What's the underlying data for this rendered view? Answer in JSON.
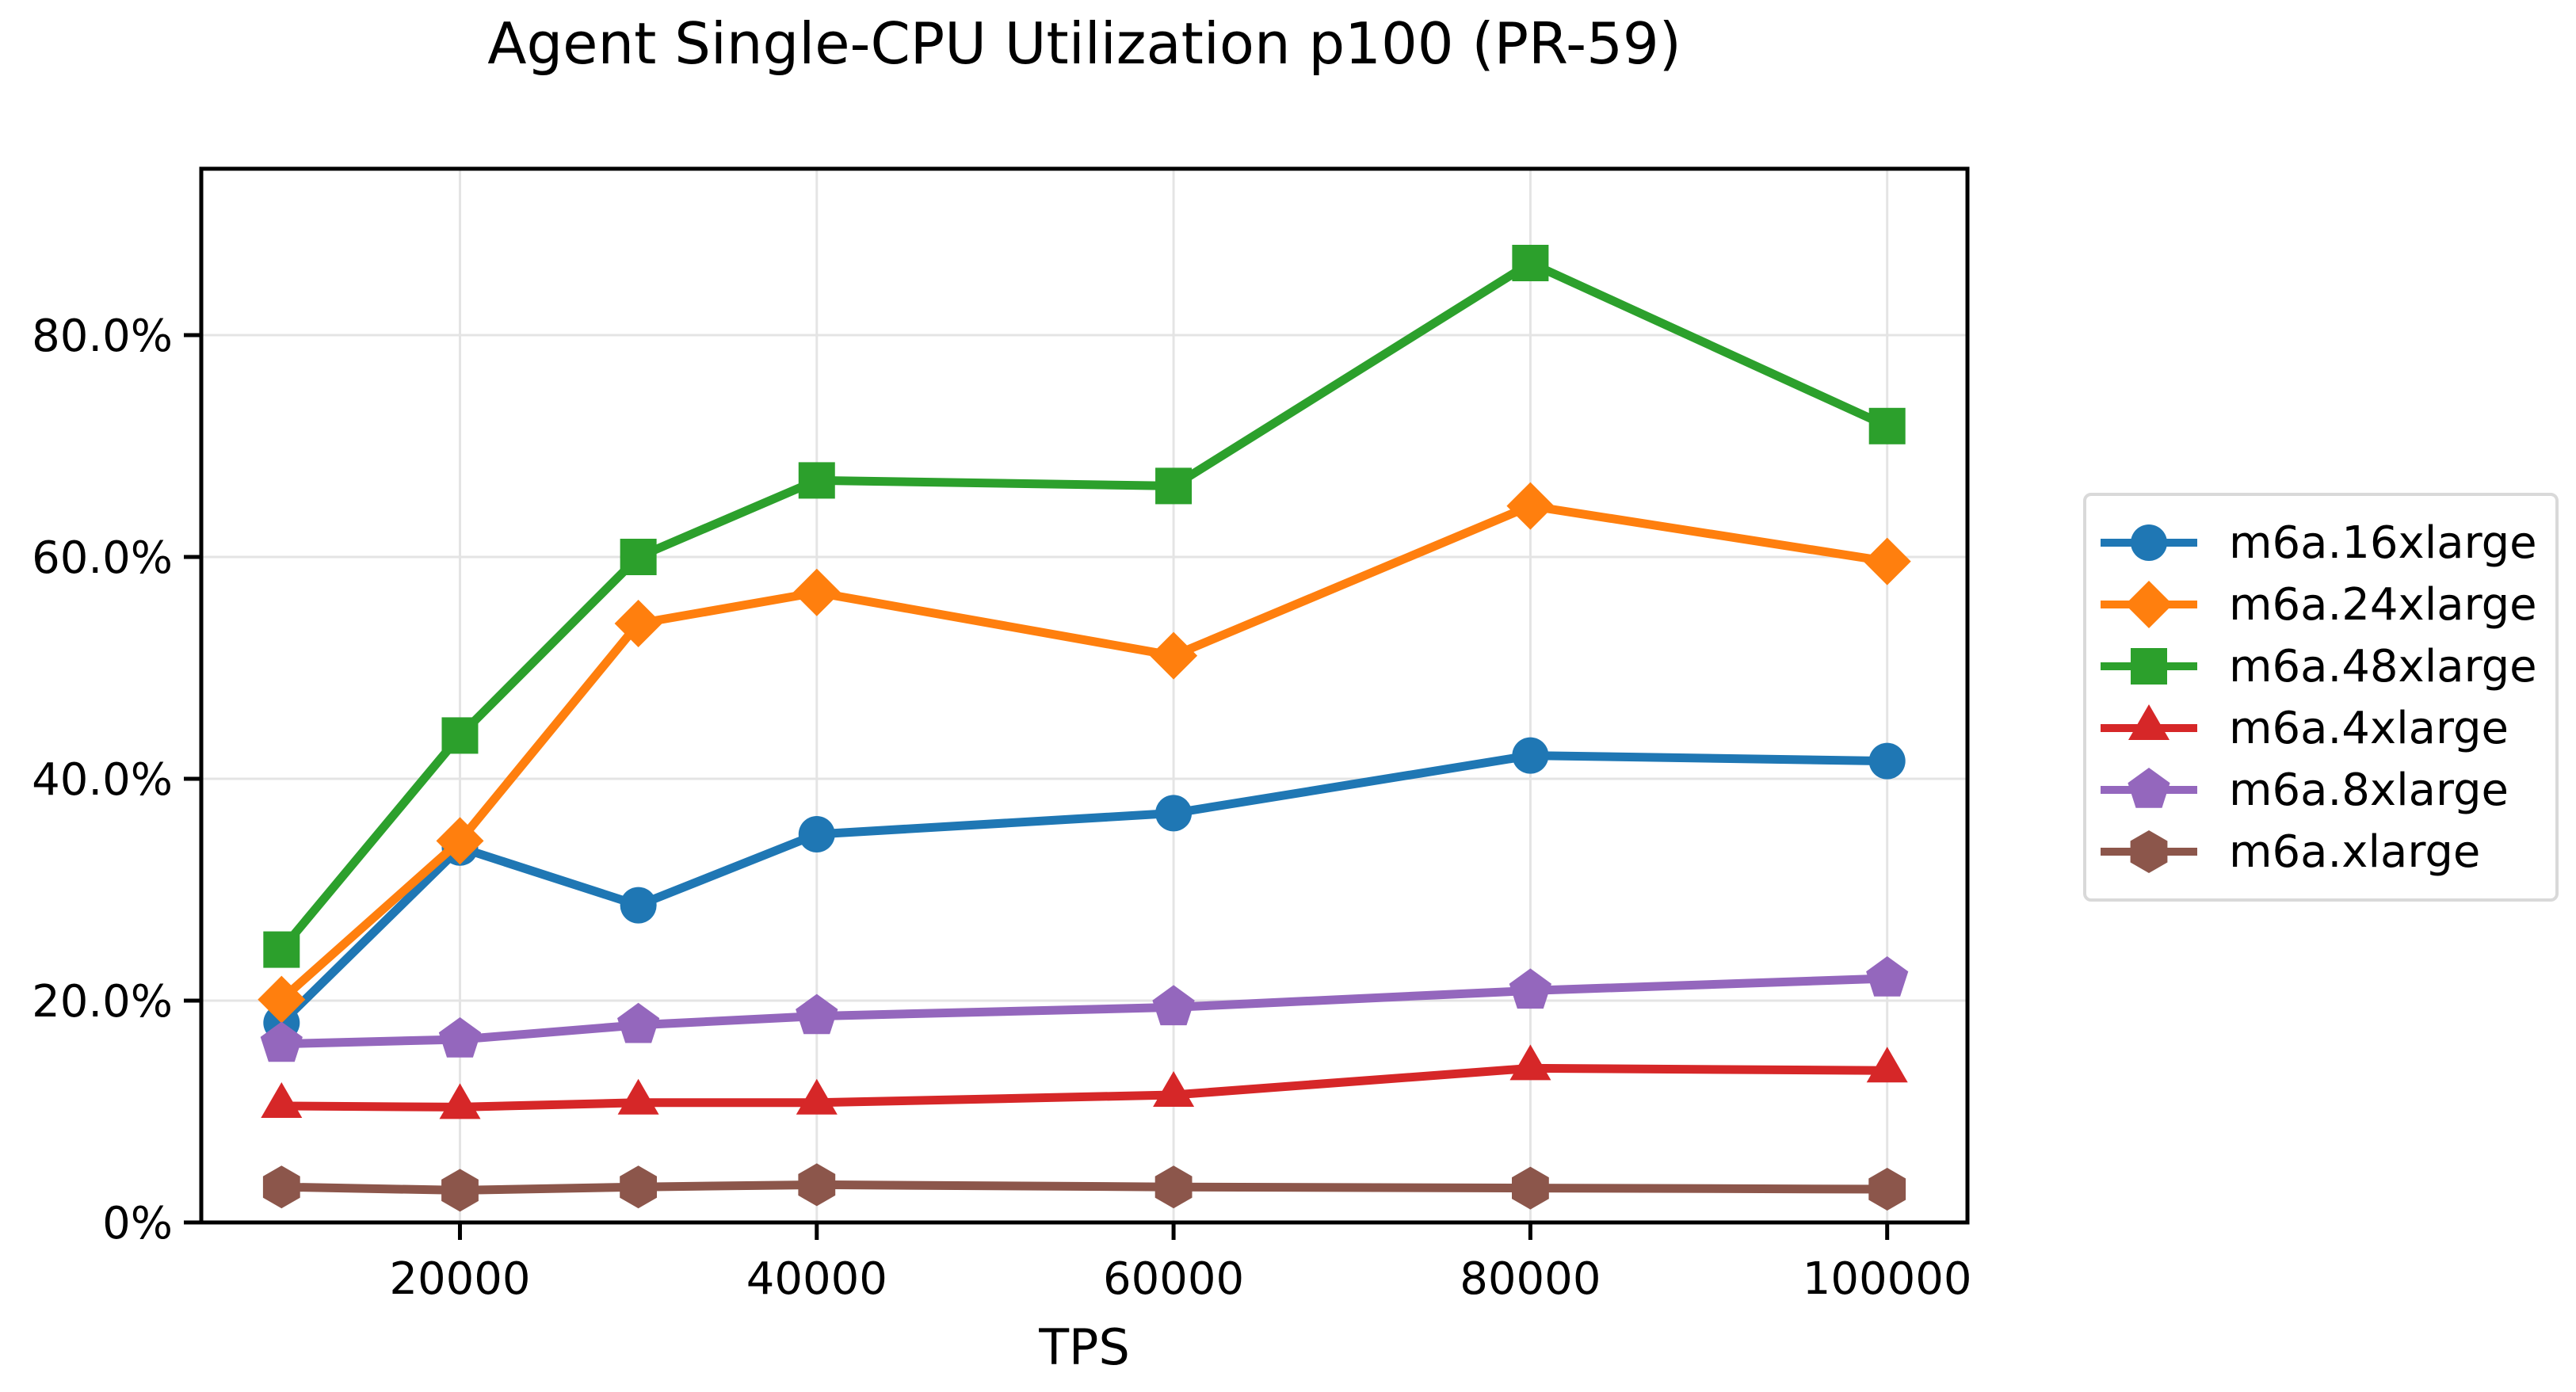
{
  "chart_data": {
    "type": "line",
    "title": "Agent Single-CPU Utilization p100 (PR-59)",
    "xlabel": "TPS",
    "ylabel": "",
    "x": [
      10000,
      20000,
      30000,
      40000,
      60000,
      80000,
      100000
    ],
    "xlim": [
      5500,
      104500
    ],
    "ylim": [
      0,
      95
    ],
    "xticks": [
      20000,
      40000,
      60000,
      80000,
      100000
    ],
    "xticklabels": [
      "20000",
      "40000",
      "60000",
      "80000",
      "100000"
    ],
    "yticks": [
      0,
      20,
      40,
      60,
      80
    ],
    "yticklabels": [
      "0%",
      "20.0%",
      "40.0%",
      "60.0%",
      "80.0%"
    ],
    "grid": true,
    "grid_color": "#e4e4e4",
    "spine_color": "#000000",
    "legend_position": "center-right-outside",
    "series": [
      {
        "name": "m6a.16xlarge",
        "color": "#1f77b4",
        "marker": "circle",
        "values": [
          18.0,
          33.8,
          28.6,
          35.0,
          36.9,
          42.1,
          41.6
        ]
      },
      {
        "name": "m6a.24xlarge",
        "color": "#ff7f0e",
        "marker": "diamond",
        "values": [
          20.1,
          34.4,
          54.0,
          56.8,
          51.1,
          64.6,
          59.6
        ]
      },
      {
        "name": "m6a.48xlarge",
        "color": "#2ca02c",
        "marker": "square",
        "values": [
          24.6,
          43.9,
          60.0,
          66.9,
          66.4,
          86.5,
          71.8
        ]
      },
      {
        "name": "m6a.4xlarge",
        "color": "#d62728",
        "marker": "triangle",
        "values": [
          10.5,
          10.4,
          10.8,
          10.8,
          11.5,
          13.9,
          13.7
        ]
      },
      {
        "name": "m6a.8xlarge",
        "color": "#9467bd",
        "marker": "pentagon",
        "values": [
          16.1,
          16.5,
          17.8,
          18.6,
          19.4,
          20.9,
          22.0
        ]
      },
      {
        "name": "m6a.xlarge",
        "color": "#8c564b",
        "marker": "hexagon",
        "values": [
          3.2,
          2.9,
          3.2,
          3.4,
          3.2,
          3.1,
          3.0
        ]
      }
    ]
  }
}
